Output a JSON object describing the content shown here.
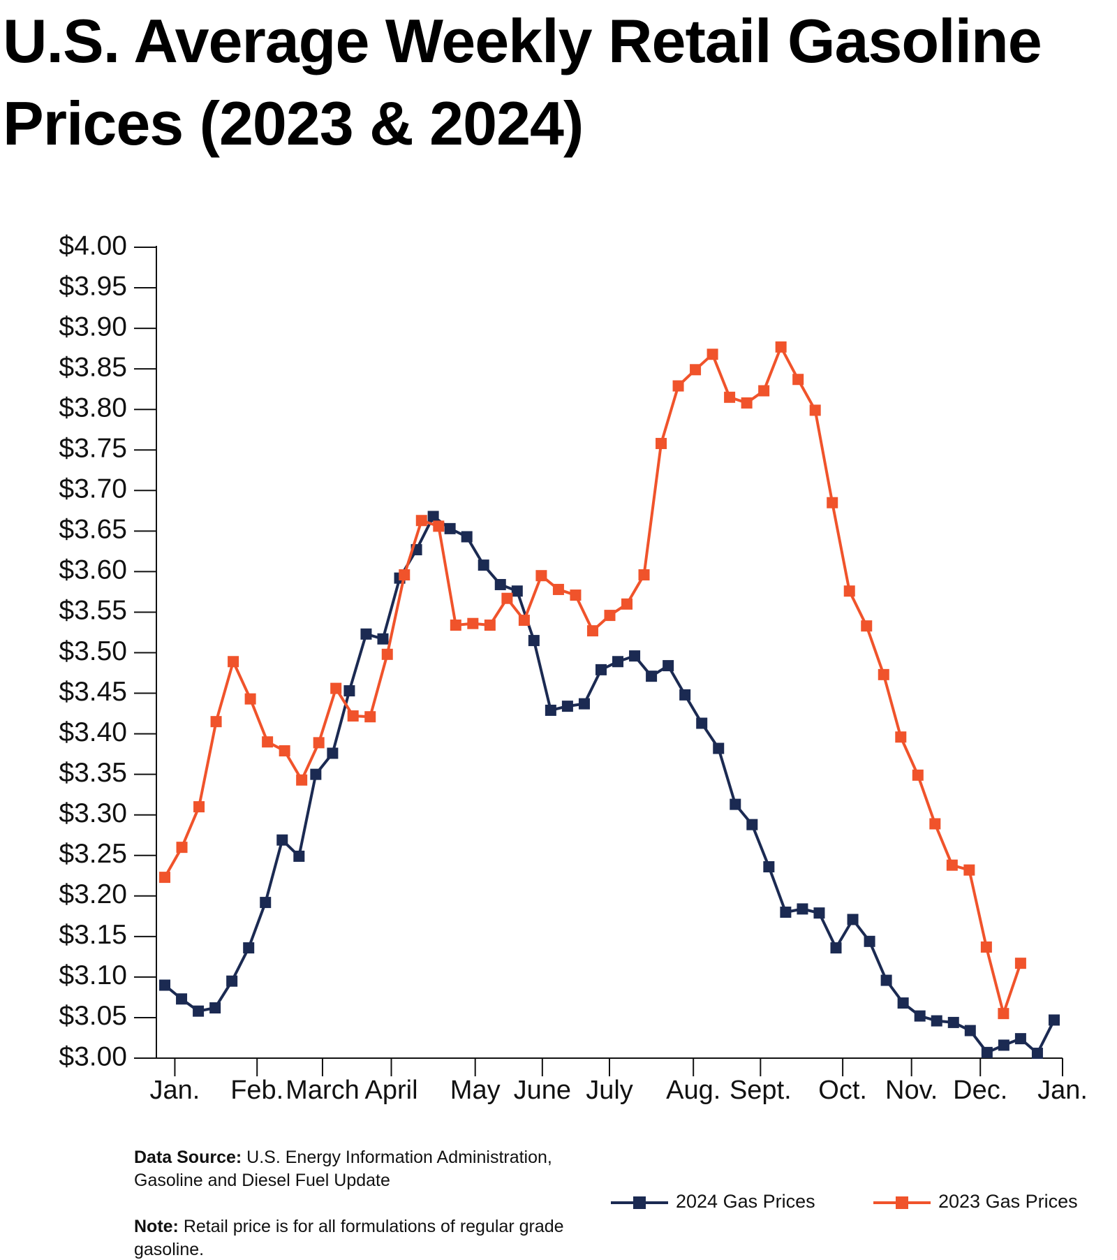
{
  "chart_data": {
    "type": "line",
    "title": "U.S. Average Weekly Retail Gasoline Prices (2023 & 2024)",
    "xlim": [
      0.5,
      54.5
    ],
    "xticks": [
      {
        "value": 1.6,
        "label": "Jan."
      },
      {
        "value": 6.5,
        "label": "Feb."
      },
      {
        "value": 10.4,
        "label": "March"
      },
      {
        "value": 14.5,
        "label": "April"
      },
      {
        "value": 19.5,
        "label": "May"
      },
      {
        "value": 23.5,
        "label": "June"
      },
      {
        "value": 27.5,
        "label": "July"
      },
      {
        "value": 32.5,
        "label": "Aug."
      },
      {
        "value": 36.5,
        "label": "Sept."
      },
      {
        "value": 41.4,
        "label": "Oct."
      },
      {
        "value": 45.5,
        "label": "Nov."
      },
      {
        "value": 49.6,
        "label": "Dec."
      },
      {
        "value": 54.5,
        "label": "Jan."
      }
    ],
    "ylim": [
      3.0,
      4.0
    ],
    "yticks": [
      {
        "value": 3.0,
        "label": "$3.00"
      },
      {
        "value": 3.05,
        "label": "$3.05"
      },
      {
        "value": 3.1,
        "label": "$3.10"
      },
      {
        "value": 3.15,
        "label": "$3.15"
      },
      {
        "value": 3.2,
        "label": "$3.20"
      },
      {
        "value": 3.25,
        "label": "$3.25"
      },
      {
        "value": 3.3,
        "label": "$3.30"
      },
      {
        "value": 3.35,
        "label": "$3.35"
      },
      {
        "value": 3.4,
        "label": "$3.40"
      },
      {
        "value": 3.45,
        "label": "$3.45"
      },
      {
        "value": 3.5,
        "label": "$3.50"
      },
      {
        "value": 3.55,
        "label": "$3.55"
      },
      {
        "value": 3.6,
        "label": "$3.60"
      },
      {
        "value": 3.65,
        "label": "$3.65"
      },
      {
        "value": 3.7,
        "label": "$3.70"
      },
      {
        "value": 3.75,
        "label": "$3.75"
      },
      {
        "value": 3.8,
        "label": "$3.80"
      },
      {
        "value": 3.85,
        "label": "$3.85"
      },
      {
        "value": 3.9,
        "label": "$3.90"
      },
      {
        "value": 3.95,
        "label": "$3.95"
      },
      {
        "value": 4.0,
        "label": "$4.00"
      }
    ],
    "grid": false,
    "legend": "bottom-right",
    "series": [
      {
        "name": "2024 Gas Prices",
        "color": "#1b2a52",
        "x": [
          1,
          2,
          3,
          4,
          5,
          6,
          7,
          8,
          9,
          10,
          11,
          12,
          13,
          14,
          15,
          16,
          17,
          18,
          19,
          20,
          21,
          22,
          23,
          24,
          25,
          26,
          27,
          28,
          29,
          30,
          31,
          32,
          33,
          34,
          35,
          36,
          37,
          38,
          39,
          40,
          41,
          42,
          43,
          44,
          45,
          46,
          47,
          48,
          49,
          50,
          51,
          52,
          53,
          54
        ],
        "values": [
          3.09,
          3.073,
          3.058,
          3.062,
          3.095,
          3.136,
          3.192,
          3.269,
          3.249,
          3.35,
          3.376,
          3.453,
          3.523,
          3.517,
          3.592,
          3.627,
          3.668,
          3.653,
          3.643,
          3.608,
          3.584,
          3.576,
          3.515,
          3.429,
          3.434,
          3.437,
          3.479,
          3.489,
          3.496,
          3.471,
          3.484,
          3.448,
          3.413,
          3.382,
          3.313,
          3.288,
          3.236,
          3.18,
          3.184,
          3.179,
          3.136,
          3.171,
          3.144,
          3.096,
          3.068,
          3.052,
          3.046,
          3.044,
          3.034,
          3.007,
          3.016,
          3.024,
          3.006,
          3.047
        ]
      },
      {
        "name": "2023 Gas Prices",
        "color": "#f0532b",
        "x": [
          1,
          2.02,
          3.04,
          4.06,
          5.08,
          6.1,
          7.12,
          8.14,
          9.16,
          10.18,
          11.2,
          12.22,
          13.24,
          14.26,
          15.28,
          16.3,
          17.32,
          18.34,
          19.36,
          20.38,
          21.4,
          22.42,
          23.44,
          24.46,
          25.48,
          26.5,
          27.52,
          28.54,
          29.56,
          30.58,
          31.6,
          32.62,
          33.64,
          34.66,
          35.68,
          36.7,
          37.72,
          38.74,
          39.76,
          40.78,
          41.8,
          42.82,
          43.84,
          44.86,
          45.88,
          46.9,
          47.92,
          48.94,
          49.96,
          50.98,
          52
        ],
        "values": [
          3.223,
          3.26,
          3.31,
          3.415,
          3.489,
          3.443,
          3.39,
          3.379,
          3.343,
          3.389,
          3.456,
          3.422,
          3.421,
          3.498,
          3.596,
          3.663,
          3.656,
          3.534,
          3.536,
          3.534,
          3.567,
          3.54,
          3.595,
          3.578,
          3.571,
          3.527,
          3.546,
          3.56,
          3.596,
          3.758,
          3.829,
          3.849,
          3.868,
          3.815,
          3.808,
          3.823,
          3.877,
          3.837,
          3.799,
          3.685,
          3.576,
          3.533,
          3.473,
          3.396,
          3.349,
          3.289,
          3.238,
          3.232,
          3.137,
          3.055,
          3.117
        ]
      }
    ],
    "source_label": "Data Source:",
    "source": "U.S. Energy Information Administration, Gasoline and Diesel Fuel Update",
    "note_label": "Note:",
    "note": "Retail price is for all formulations of regular grade gasoline."
  }
}
